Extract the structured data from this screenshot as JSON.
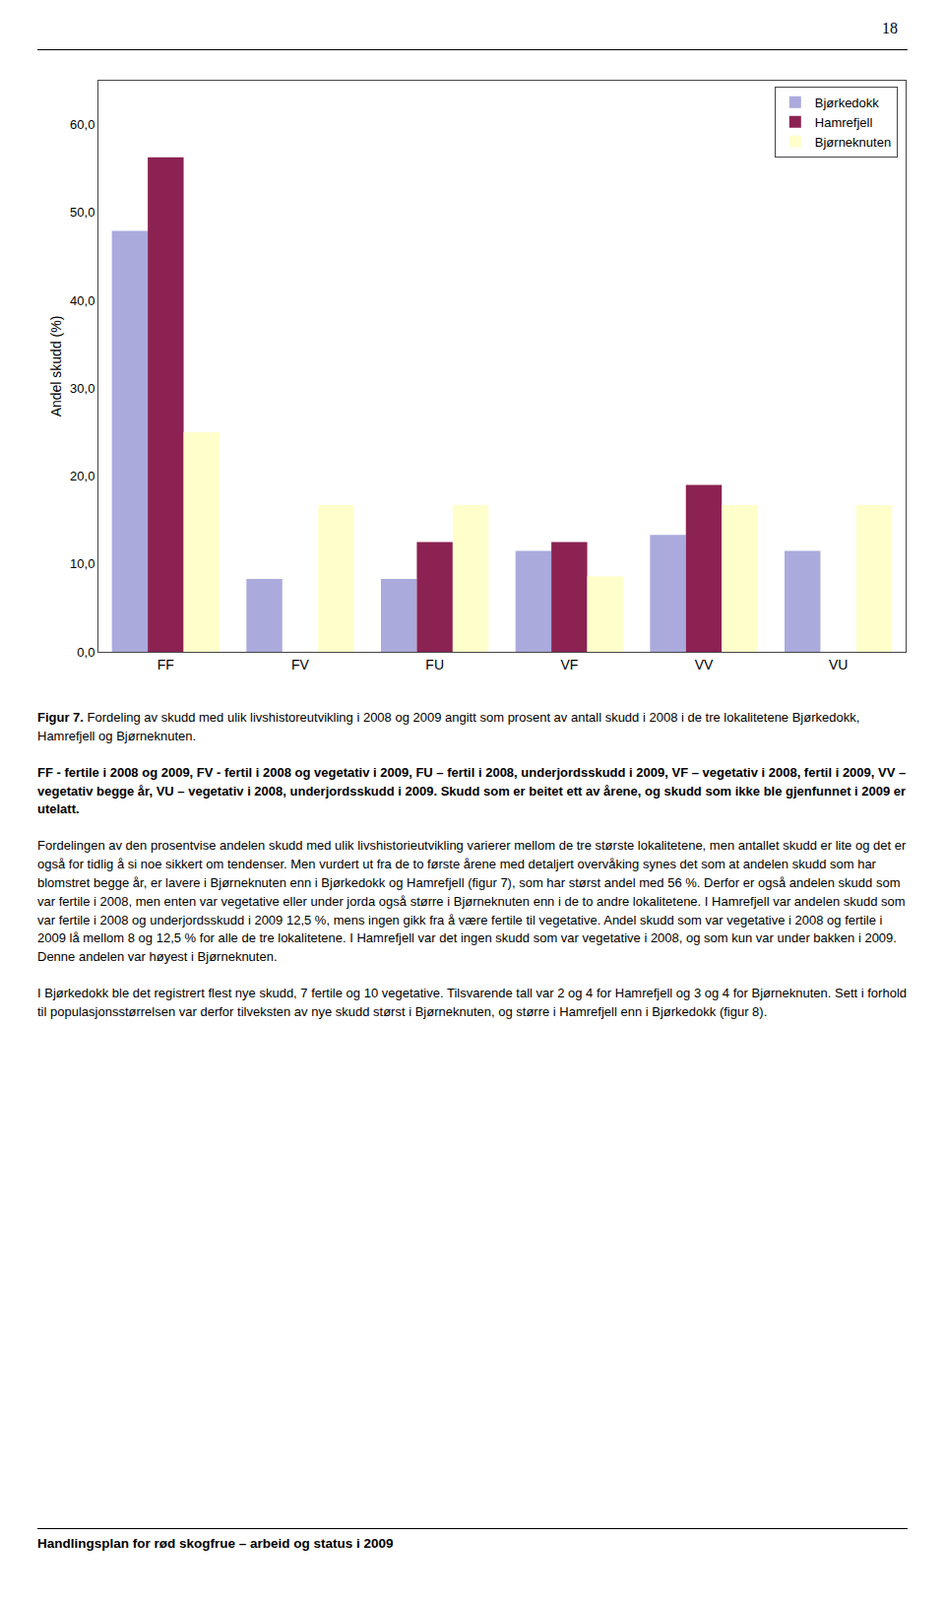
{
  "chart_data": {
    "type": "bar",
    "categories": [
      "FF",
      "FV",
      "FU",
      "VF",
      "VV",
      "VU"
    ],
    "series": [
      {
        "name": "Bjørkedokk",
        "color": "#AAAADD",
        "values": [
          47.9,
          8.3,
          8.3,
          11.5,
          13.3,
          11.5
        ]
      },
      {
        "name": "Hamrefjell",
        "color": "#8B2252",
        "values": [
          56.3,
          0.0,
          12.5,
          12.5,
          19.0,
          0.0
        ]
      },
      {
        "name": "Bjørneknuten",
        "color": "#FFFFCC",
        "values": [
          25.0,
          16.7,
          16.7,
          8.6,
          16.7,
          16.7
        ]
      }
    ],
    "ylabel": "Andel skudd (%)",
    "ylim": [
      0,
      65
    ],
    "yticks": [
      {
        "value": 0.0,
        "label": "0,0"
      },
      {
        "value": 10.0,
        "label": "10,0"
      },
      {
        "value": 20.0,
        "label": "20,0"
      },
      {
        "value": 30.0,
        "label": "30,0"
      },
      {
        "value": 40.0,
        "label": "40,0"
      },
      {
        "value": 50.0,
        "label": "50,0"
      },
      {
        "value": 60.0,
        "label": "60,0"
      }
    ],
    "legend": "upper right",
    "grid": false,
    "annotations": [
      "18",
      "Figur 7.",
      " Fordeling av skudd med ulik livshistoreutvikling i 2008 og 2009 angitt som prosent av antall skudd i 2008 i de tre lokalitetene Bjørkedokk, Hamrefjell og Bjørneknuten.",
      "FF - fertile i 2008 og 2009, FV - fertil i 2008 og vegetativ i 2009, FU – fertil i 2008, underjordsskudd i 2009, VF – vegetativ i 2008, fertil i 2009, VV – vegetativ begge år, VU – vegetativ i 2008, underjordsskudd i 2009. Skudd som er beitet ett av årene, og skudd som ikke ble gjenfunnet i 2009 er utelatt.",
      "Fordelingen av den prosentvise andelen skudd med ulik livshistorieutvikling varierer mellom de tre største lokalitetene, men antallet skudd er lite og det er også for tidlig å si noe sikkert om tendenser. Men vurdert ut fra de to første årene med detaljert overvåking synes det som at andelen skudd som har blomstret begge år, er lavere i Bjørneknuten enn i Bjørkedokk og Hamrefjell (figur 7), som har størst andel med 56 %. Derfor er også andelen skudd som var fertile i 2008, men enten var vegetative eller under jorda også større i Bjørneknuten enn i de to andre lokalitetene. I Hamrefjell var andelen skudd som var fertile i 2008 og underjordsskudd i 2009 12,5 %, mens ingen gikk fra å være fertile til vegetative. Andel skudd som var vegetative i 2008 og fertile i 2009 lå mellom 8 og 12,5 % for alle de tre lokalitetene. I Hamrefjell var det ingen skudd som var vegetative i 2008, og som kun var under bakken i 2009. Denne andelen var høyest i Bjørneknuten.",
      "I Bjørkedokk ble det registrert flest nye skudd, 7 fertile og 10 vegetative. Tilsvarende tall var 2 og 4 for Hamrefjell og 3 og 4 for Bjørneknuten. Sett i forhold til populasjonsstørrelsen var derfor tilveksten av nye skudd størst i Bjørneknuten, og større i Hamrefjell enn i Bjørkedokk (figur 8).",
      "Handlingsplan for rød skogfrue – arbeid og status i 2009"
    ]
  }
}
